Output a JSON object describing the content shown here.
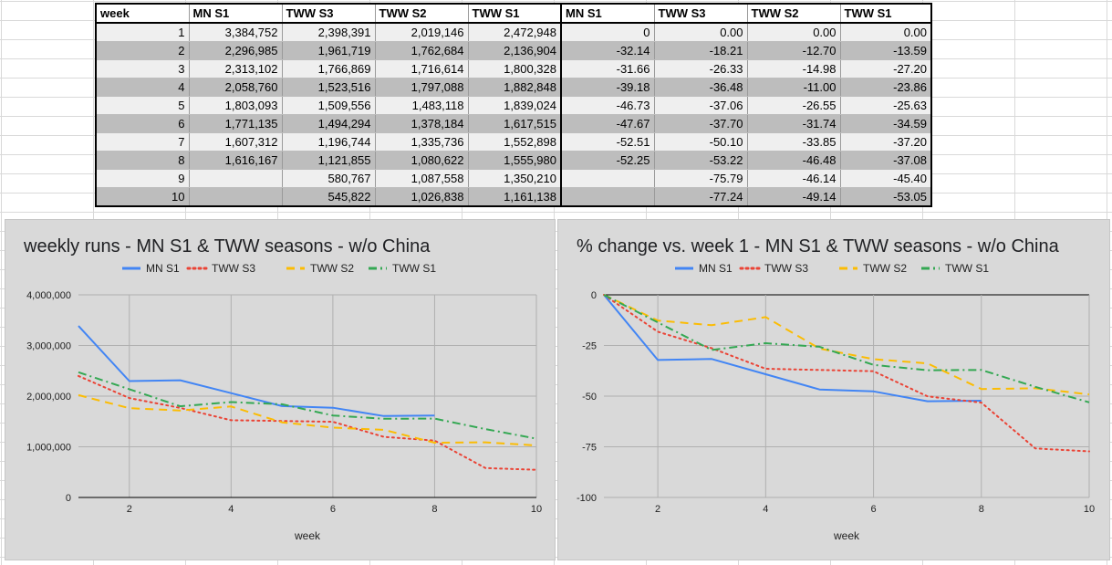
{
  "table": {
    "headers": [
      "week",
      "MN S1",
      "TWW S3",
      "TWW S2",
      "TWW S1",
      "MN S1",
      "TWW S3",
      "TWW S2",
      "TWW S1"
    ],
    "rows": [
      [
        "1",
        "3,384,752",
        "2,398,391",
        "2,019,146",
        "2,472,948",
        "0",
        "0.00",
        "0.00",
        "0.00"
      ],
      [
        "2",
        "2,296,985",
        "1,961,719",
        "1,762,684",
        "2,136,904",
        "-32.14",
        "-18.21",
        "-12.70",
        "-13.59"
      ],
      [
        "3",
        "2,313,102",
        "1,766,869",
        "1,716,614",
        "1,800,328",
        "-31.66",
        "-26.33",
        "-14.98",
        "-27.20"
      ],
      [
        "4",
        "2,058,760",
        "1,523,516",
        "1,797,088",
        "1,882,848",
        "-39.18",
        "-36.48",
        "-11.00",
        "-23.86"
      ],
      [
        "5",
        "1,803,093",
        "1,509,556",
        "1,483,118",
        "1,839,024",
        "-46.73",
        "-37.06",
        "-26.55",
        "-25.63"
      ],
      [
        "6",
        "1,771,135",
        "1,494,294",
        "1,378,184",
        "1,617,515",
        "-47.67",
        "-37.70",
        "-31.74",
        "-34.59"
      ],
      [
        "7",
        "1,607,312",
        "1,196,744",
        "1,335,736",
        "1,552,898",
        "-52.51",
        "-50.10",
        "-33.85",
        "-37.20"
      ],
      [
        "8",
        "1,616,167",
        "1,121,855",
        "1,080,622",
        "1,555,980",
        "-52.25",
        "-53.22",
        "-46.48",
        "-37.08"
      ],
      [
        "9",
        "",
        "580,767",
        "1,087,558",
        "1,350,210",
        "",
        "-75.79",
        "-46.14",
        "-45.40"
      ],
      [
        "10",
        "",
        "545,822",
        "1,026,838",
        "1,161,138",
        "",
        "-77.24",
        "-49.14",
        "-53.05"
      ]
    ]
  },
  "chart_data": [
    {
      "type": "line",
      "title": "weekly runs - MN S1 & TWW seasons - w/o China",
      "xlabel": "week",
      "ylabel": "",
      "xlim": [
        1,
        10
      ],
      "ylim": [
        0,
        4000000
      ],
      "x_ticks": [
        2,
        4,
        6,
        8,
        10
      ],
      "y_ticks": [
        0,
        1000000,
        2000000,
        3000000,
        4000000
      ],
      "y_tick_labels": [
        "0",
        "1,000,000",
        "2,000,000",
        "3,000,000",
        "4,000,000"
      ],
      "grid": true,
      "legend_position": "top",
      "x": [
        1,
        2,
        3,
        4,
        5,
        6,
        7,
        8,
        9,
        10
      ],
      "series": [
        {
          "name": "MN S1",
          "color": "#4285f4",
          "dash": "solid",
          "values": [
            3384752,
            2296985,
            2313102,
            2058760,
            1803093,
            1771135,
            1607312,
            1616167,
            null,
            null
          ]
        },
        {
          "name": "TWW S3",
          "color": "#ea4335",
          "dash": "dotted",
          "values": [
            2398391,
            1961719,
            1766869,
            1523516,
            1509556,
            1494294,
            1196744,
            1121855,
            580767,
            545822
          ]
        },
        {
          "name": "TWW S2",
          "color": "#fbbc04",
          "dash": "dashed",
          "values": [
            2019146,
            1762684,
            1716614,
            1797088,
            1483118,
            1378184,
            1335736,
            1080622,
            1087558,
            1026838
          ]
        },
        {
          "name": "TWW S1",
          "color": "#34a853",
          "dash": "dashdot",
          "values": [
            2472948,
            2136904,
            1800328,
            1882848,
            1839024,
            1617515,
            1552898,
            1555980,
            1350210,
            1161138
          ]
        }
      ]
    },
    {
      "type": "line",
      "title": "% change vs. week 1 - MN S1 & TWW seasons - w/o China",
      "xlabel": "week",
      "ylabel": "",
      "xlim": [
        1,
        10
      ],
      "ylim": [
        -100,
        0
      ],
      "x_ticks": [
        2,
        4,
        6,
        8,
        10
      ],
      "y_ticks": [
        0,
        -25,
        -50,
        -75,
        -100
      ],
      "y_tick_labels": [
        "0",
        "-25",
        "-50",
        "-75",
        "-100"
      ],
      "grid": true,
      "legend_position": "top",
      "x": [
        1,
        2,
        3,
        4,
        5,
        6,
        7,
        8,
        9,
        10
      ],
      "series": [
        {
          "name": "MN S1",
          "color": "#4285f4",
          "dash": "solid",
          "values": [
            0,
            -32.14,
            -31.66,
            -39.18,
            -46.73,
            -47.67,
            -52.51,
            -52.25,
            null,
            null
          ]
        },
        {
          "name": "TWW S3",
          "color": "#ea4335",
          "dash": "dotted",
          "values": [
            0,
            -18.21,
            -26.33,
            -36.48,
            -37.06,
            -37.7,
            -50.1,
            -53.22,
            -75.79,
            -77.24
          ]
        },
        {
          "name": "TWW S2",
          "color": "#fbbc04",
          "dash": "dashed",
          "values": [
            0,
            -12.7,
            -14.98,
            -11.0,
            -26.55,
            -31.74,
            -33.85,
            -46.48,
            -46.14,
            -49.14
          ]
        },
        {
          "name": "TWW S1",
          "color": "#34a853",
          "dash": "dashdot",
          "values": [
            0,
            -13.59,
            -27.2,
            -23.86,
            -25.63,
            -34.59,
            -37.2,
            -37.08,
            -45.4,
            -53.05
          ]
        }
      ]
    }
  ]
}
